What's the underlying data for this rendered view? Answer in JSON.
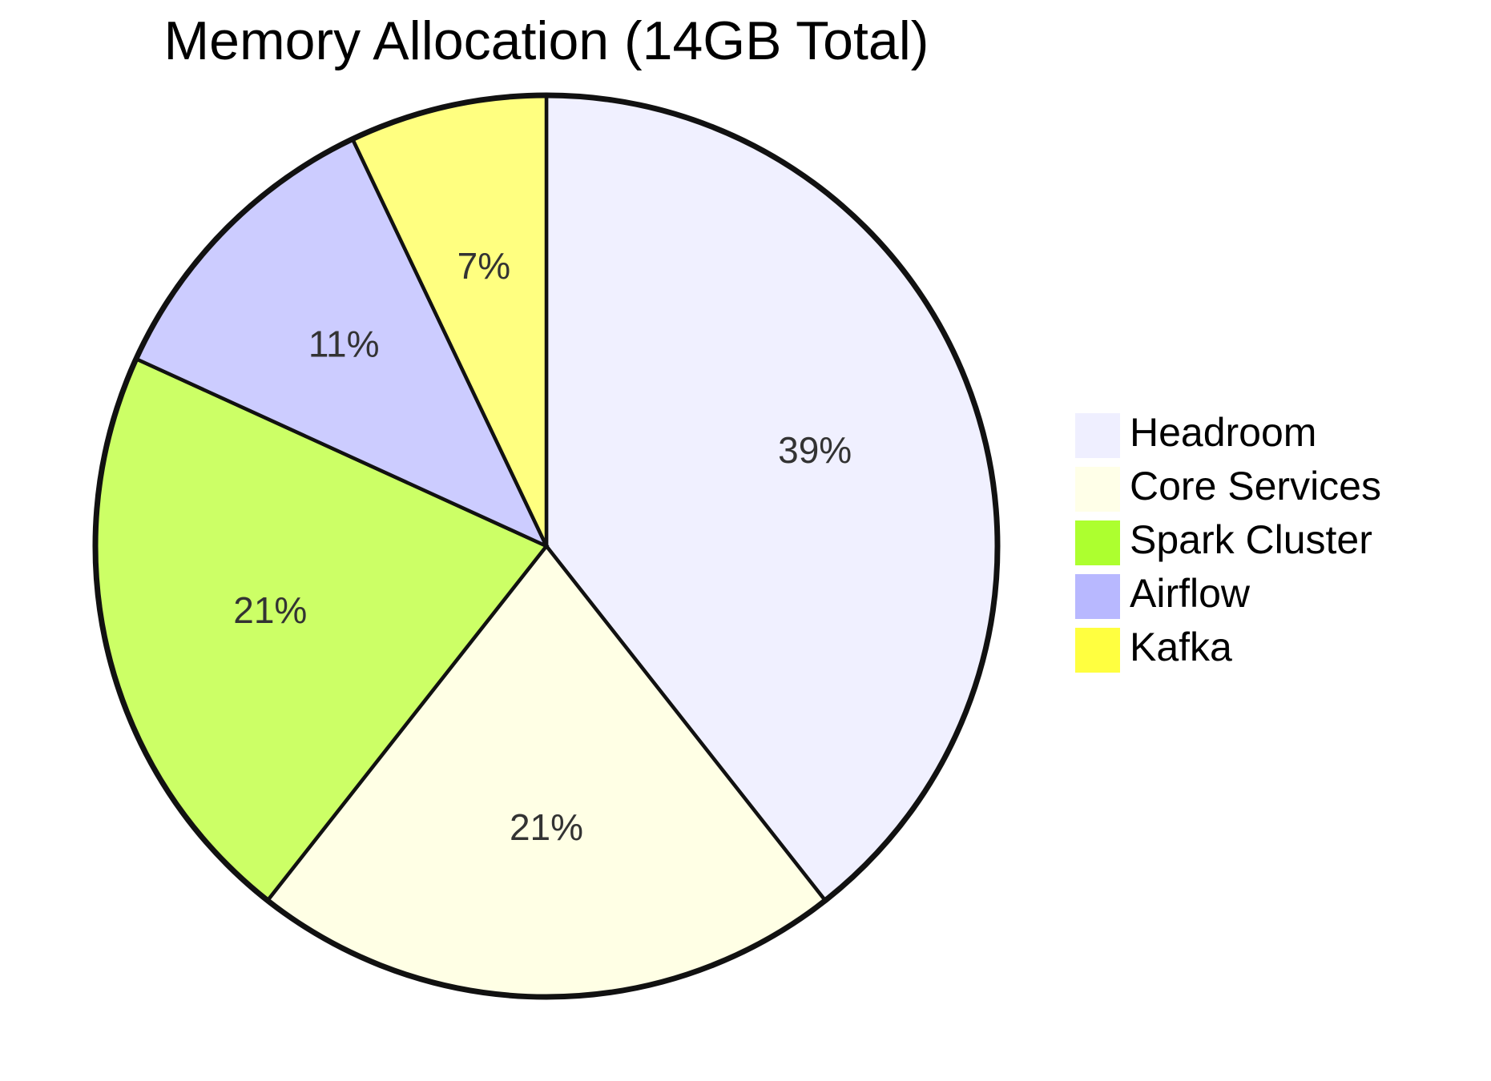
{
  "chart_data": {
    "type": "pie",
    "title": "Memory Allocation (14GB Total)",
    "legend_position": "right",
    "start_angle": "12 o'clock",
    "direction": "clockwise",
    "slices": [
      {
        "label": "Headroom",
        "value": 39,
        "display": "39%",
        "color": "#f0f0ff"
      },
      {
        "label": "Core Services",
        "value": 21,
        "display": "21%",
        "color": "#ffffe5"
      },
      {
        "label": "Spark Cluster",
        "value": 21,
        "display": "21%",
        "color": "#ccff66"
      },
      {
        "label": "Airflow",
        "value": 11,
        "display": "11%",
        "color": "#ccccff"
      },
      {
        "label": "Kafka",
        "value": 7,
        "display": "7%",
        "color": "#ffff80"
      }
    ],
    "legend": [
      {
        "label": "Headroom",
        "color": "#efefff"
      },
      {
        "label": "Core Services",
        "color": "#ffffe8"
      },
      {
        "label": "Spark Cluster",
        "color": "#adff2f"
      },
      {
        "label": "Airflow",
        "color": "#b8b8ff"
      },
      {
        "label": "Kafka",
        "color": "#ffff40"
      }
    ]
  }
}
